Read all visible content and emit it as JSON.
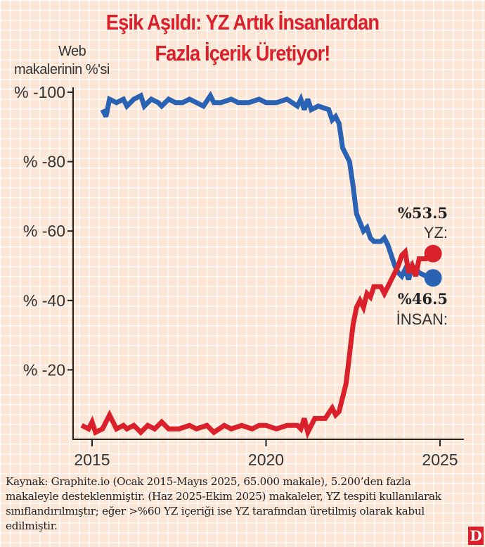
{
  "chart_data": {
    "type": "line",
    "title_line1": "Eşik Aşıldı: YZ Artık İnsanlardan",
    "title_line2": "Fazla İçerik Üretiyor!",
    "ylabel_line1": "Web",
    "ylabel_line2": "makalerinin %'si",
    "ylim": [
      0,
      100
    ],
    "xlim": [
      2014.6,
      2025.6
    ],
    "y_ticks": [
      {
        "value": 100,
        "label": "% -100"
      },
      {
        "value": 80,
        "label": "% -80"
      },
      {
        "value": 60,
        "label": "% -60"
      },
      {
        "value": 40,
        "label": "% -40"
      },
      {
        "value": 20,
        "label": "% -20"
      }
    ],
    "x_ticks": [
      {
        "value": 2015,
        "label": "2015"
      },
      {
        "value": 2020,
        "label": "2020"
      },
      {
        "value": 2025,
        "label": "2025"
      }
    ],
    "grid": true,
    "series": [
      {
        "name": "İNSAN:",
        "color": "#2a63b4",
        "end_label": "%46.5",
        "points": [
          [
            2015.3,
            95
          ],
          [
            2015.4,
            93
          ],
          [
            2015.5,
            98
          ],
          [
            2015.7,
            97
          ],
          [
            2015.9,
            98
          ],
          [
            2016.0,
            96
          ],
          [
            2016.2,
            98
          ],
          [
            2016.4,
            99
          ],
          [
            2016.5,
            96
          ],
          [
            2016.7,
            98
          ],
          [
            2016.9,
            97
          ],
          [
            2017.0,
            96
          ],
          [
            2017.2,
            98
          ],
          [
            2017.4,
            97
          ],
          [
            2017.6,
            97
          ],
          [
            2017.8,
            98
          ],
          [
            2018.0,
            97
          ],
          [
            2018.2,
            96
          ],
          [
            2018.4,
            99
          ],
          [
            2018.5,
            97
          ],
          [
            2018.7,
            97
          ],
          [
            2019.0,
            98
          ],
          [
            2019.2,
            97
          ],
          [
            2019.5,
            97
          ],
          [
            2019.8,
            98
          ],
          [
            2020.0,
            97
          ],
          [
            2020.3,
            97
          ],
          [
            2020.6,
            98
          ],
          [
            2020.9,
            96
          ],
          [
            2021.0,
            98
          ],
          [
            2021.1,
            95
          ],
          [
            2021.2,
            98
          ],
          [
            2021.3,
            95
          ],
          [
            2021.5,
            96
          ],
          [
            2021.8,
            95
          ],
          [
            2021.9,
            92
          ],
          [
            2022.0,
            93
          ],
          [
            2022.1,
            91
          ],
          [
            2022.2,
            84
          ],
          [
            2022.4,
            80
          ],
          [
            2022.5,
            73
          ],
          [
            2022.6,
            65
          ],
          [
            2022.8,
            60
          ],
          [
            2022.9,
            61
          ],
          [
            2023.0,
            58
          ],
          [
            2023.1,
            57
          ],
          [
            2023.3,
            57
          ],
          [
            2023.4,
            58
          ],
          [
            2023.5,
            56
          ],
          [
            2023.7,
            50
          ],
          [
            2023.8,
            48
          ],
          [
            2023.9,
            47
          ],
          [
            2024.0,
            49
          ],
          [
            2024.1,
            46
          ],
          [
            2024.2,
            50
          ],
          [
            2024.4,
            48
          ],
          [
            2024.6,
            47
          ],
          [
            2024.8,
            46.5
          ]
        ]
      },
      {
        "name": "YZ:",
        "color": "#d9202b",
        "end_label": "%53.5",
        "points": [
          [
            2014.7,
            4
          ],
          [
            2014.9,
            3
          ],
          [
            2015.0,
            5
          ],
          [
            2015.1,
            2
          ],
          [
            2015.3,
            3
          ],
          [
            2015.5,
            7
          ],
          [
            2015.7,
            3
          ],
          [
            2015.9,
            4
          ],
          [
            2016.0,
            3
          ],
          [
            2016.2,
            4
          ],
          [
            2016.4,
            2
          ],
          [
            2016.6,
            4
          ],
          [
            2016.8,
            3
          ],
          [
            2017.0,
            5
          ],
          [
            2017.2,
            3
          ],
          [
            2017.5,
            3
          ],
          [
            2017.8,
            4
          ],
          [
            2018.0,
            3
          ],
          [
            2018.3,
            4
          ],
          [
            2018.5,
            2
          ],
          [
            2018.8,
            4
          ],
          [
            2019.0,
            3
          ],
          [
            2019.3,
            4
          ],
          [
            2019.6,
            3
          ],
          [
            2019.8,
            4
          ],
          [
            2020.0,
            4
          ],
          [
            2020.3,
            3
          ],
          [
            2020.6,
            4
          ],
          [
            2020.9,
            4
          ],
          [
            2021.0,
            3
          ],
          [
            2021.1,
            6
          ],
          [
            2021.2,
            2
          ],
          [
            2021.4,
            6
          ],
          [
            2021.7,
            6
          ],
          [
            2021.9,
            9
          ],
          [
            2022.0,
            7
          ],
          [
            2022.1,
            8
          ],
          [
            2022.3,
            16
          ],
          [
            2022.5,
            33
          ],
          [
            2022.6,
            38
          ],
          [
            2022.7,
            40
          ],
          [
            2022.8,
            38
          ],
          [
            2022.9,
            42
          ],
          [
            2023.0,
            41
          ],
          [
            2023.1,
            44
          ],
          [
            2023.3,
            44
          ],
          [
            2023.4,
            42
          ],
          [
            2023.5,
            44
          ],
          [
            2023.7,
            48
          ],
          [
            2023.8,
            50
          ],
          [
            2023.9,
            53
          ],
          [
            2024.0,
            54
          ],
          [
            2024.1,
            48
          ],
          [
            2024.2,
            50
          ],
          [
            2024.3,
            47
          ],
          [
            2024.4,
            52
          ],
          [
            2024.6,
            52
          ],
          [
            2024.8,
            53.5
          ]
        ]
      }
    ]
  },
  "footer": {
    "source": "Kaynak: Graphite.io (Ocak 2015-Mayıs 2025, 65.000 makale), 5.200’den fazla makaleyle desteklenmiştir. (Haz 2025-Ekim 2025) makaleler, YZ tespiti kullanılarak sınıflandırılmıştır; eğer >%60 YZ içeriği ise YZ tarafından üretilmiş olarak kabul edilmiştir.",
    "logo": "D"
  }
}
